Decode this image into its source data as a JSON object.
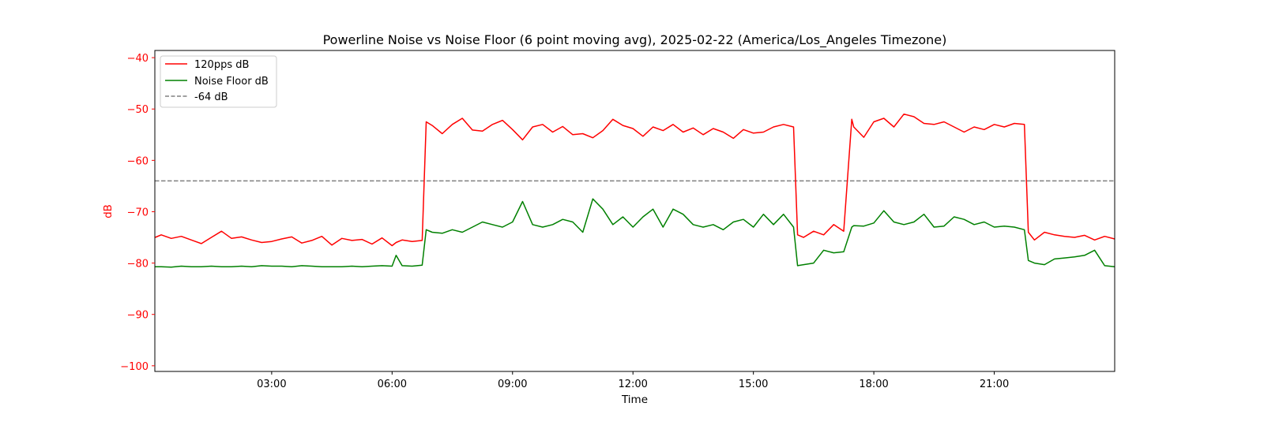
{
  "chart_data": {
    "type": "line",
    "title": "Powerline Noise vs Noise Floor (6 point moving avg), 2025-02-22 (America/Los_Angeles Timezone)",
    "xlabel": "Time",
    "ylabel": "dB",
    "x_unit": "hours since 00:00",
    "xlim": [
      0.09,
      24.0
    ],
    "ylim": [
      -101.1,
      -38.6
    ],
    "x_ticks": [
      3,
      6,
      9,
      12,
      15,
      18,
      21
    ],
    "x_tick_labels": [
      "03:00",
      "06:00",
      "09:00",
      "12:00",
      "15:00",
      "18:00",
      "21:00"
    ],
    "y_ticks": [
      -40,
      -50,
      -60,
      -70,
      -80,
      -90,
      -100
    ],
    "y_tick_labels": [
      "−40",
      "−50",
      "−60",
      "−70",
      "−80",
      "−90",
      "−100"
    ],
    "grid": false,
    "legend_position": "top-left",
    "x": [
      0.1,
      0.25,
      0.5,
      0.75,
      1.0,
      1.25,
      1.5,
      1.75,
      2.0,
      2.25,
      2.5,
      2.75,
      3.0,
      3.25,
      3.5,
      3.75,
      4.0,
      4.25,
      4.5,
      4.75,
      5.0,
      5.25,
      5.5,
      5.75,
      6.0,
      6.1,
      6.25,
      6.5,
      6.75,
      6.85,
      7.0,
      7.25,
      7.5,
      7.75,
      8.0,
      8.25,
      8.5,
      8.75,
      9.0,
      9.25,
      9.5,
      9.75,
      10.0,
      10.25,
      10.5,
      10.75,
      11.0,
      11.25,
      11.5,
      11.75,
      12.0,
      12.25,
      12.5,
      12.75,
      13.0,
      13.25,
      13.5,
      13.75,
      14.0,
      14.25,
      14.5,
      14.75,
      15.0,
      15.25,
      15.5,
      15.75,
      16.0,
      16.1,
      16.25,
      16.5,
      16.75,
      17.0,
      17.25,
      17.45,
      17.5,
      17.75,
      18.0,
      18.25,
      18.5,
      18.75,
      19.0,
      19.25,
      19.5,
      19.75,
      20.0,
      20.25,
      20.5,
      20.75,
      21.0,
      21.25,
      21.5,
      21.75,
      21.85,
      22.0,
      22.25,
      22.5,
      22.75,
      23.0,
      23.25,
      23.5,
      23.75,
      24.0
    ],
    "series": [
      {
        "name": "120pps dB",
        "color": "#ff0000",
        "style": "solid",
        "values": [
          -75.0,
          -74.5,
          -75.2,
          -74.8,
          -75.5,
          -76.2,
          -75.0,
          -73.8,
          -75.2,
          -74.9,
          -75.5,
          -76.0,
          -75.8,
          -75.3,
          -74.9,
          -76.1,
          -75.6,
          -74.8,
          -76.5,
          -75.2,
          -75.6,
          -75.4,
          -76.3,
          -75.1,
          -76.6,
          -76.0,
          -75.5,
          -75.8,
          -75.6,
          -52.5,
          -53.2,
          -54.8,
          -53.0,
          -51.8,
          -54.1,
          -54.3,
          -53.0,
          -52.2,
          -54.0,
          -56.0,
          -53.5,
          -53.0,
          -54.5,
          -53.4,
          -55.0,
          -54.8,
          -55.6,
          -54.2,
          -52.0,
          -53.2,
          -53.8,
          -55.3,
          -53.5,
          -54.2,
          -53.0,
          -54.5,
          -53.7,
          -55.0,
          -53.8,
          -54.5,
          -55.7,
          -54.0,
          -54.7,
          -54.5,
          -53.5,
          -53.0,
          -53.5,
          -74.5,
          -75.0,
          -73.8,
          -74.5,
          -72.5,
          -73.8,
          -52.0,
          -53.5,
          -55.5,
          -52.5,
          -51.8,
          -53.5,
          -51.0,
          -51.5,
          -52.8,
          -53.0,
          -52.5,
          -53.5,
          -54.5,
          -53.5,
          -54.0,
          -53.0,
          -53.5,
          -52.8,
          -53.0,
          -74.0,
          -75.5,
          -74.0,
          -74.5,
          -74.8,
          -75.0,
          -74.6,
          -75.5,
          -74.8,
          -75.3
        ]
      },
      {
        "name": "Noise Floor dB",
        "color": "#008000",
        "style": "solid",
        "values": [
          -80.7,
          -80.7,
          -80.8,
          -80.6,
          -80.7,
          -80.7,
          -80.6,
          -80.7,
          -80.7,
          -80.6,
          -80.7,
          -80.5,
          -80.6,
          -80.6,
          -80.7,
          -80.5,
          -80.6,
          -80.7,
          -80.7,
          -80.7,
          -80.6,
          -80.7,
          -80.6,
          -80.5,
          -80.6,
          -78.5,
          -80.5,
          -80.6,
          -80.4,
          -73.5,
          -74.0,
          -74.2,
          -73.5,
          -74.0,
          -73.0,
          -72.0,
          -72.5,
          -73.0,
          -72.0,
          -68.0,
          -72.5,
          -73.0,
          -72.5,
          -71.5,
          -72.0,
          -74.0,
          -67.5,
          -69.5,
          -72.5,
          -71.0,
          -73.0,
          -71.0,
          -69.5,
          -73.0,
          -69.5,
          -70.5,
          -72.5,
          -73.0,
          -72.5,
          -73.5,
          -72.0,
          -71.5,
          -73.0,
          -70.5,
          -72.5,
          -70.5,
          -73.0,
          -80.5,
          -80.3,
          -80.0,
          -77.5,
          -78.0,
          -77.8,
          -73.0,
          -72.7,
          -72.8,
          -72.2,
          -69.8,
          -72.0,
          -72.5,
          -72.0,
          -70.5,
          -73.0,
          -72.8,
          -71.0,
          -71.5,
          -72.5,
          -72.0,
          -73.0,
          -72.8,
          -73.0,
          -73.5,
          -79.5,
          -80.0,
          -80.3,
          -79.2,
          -79.0,
          -78.8,
          -78.5,
          -77.5,
          -80.5,
          -80.7
        ]
      }
    ],
    "reference_line": {
      "name": "-64 dB",
      "value": -64,
      "color": "#808080",
      "style": "dashed"
    },
    "ylabel_color": "#ff0000",
    "ytick_color": "#ff0000"
  }
}
